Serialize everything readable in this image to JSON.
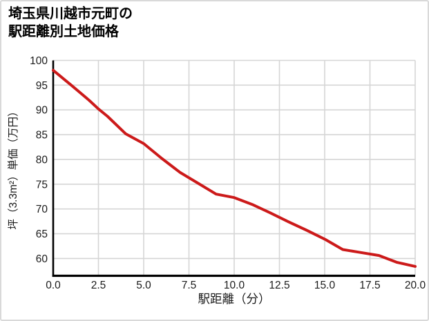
{
  "header": {
    "title_line1": "埼玉県川越市元町の",
    "title_line2": "駅距離別土地価格"
  },
  "chart_data": {
    "type": "line",
    "title": "埼玉県川越市元町の駅距離別土地価格",
    "xlabel": "駅距離（分）",
    "ylabel": "坪（3.3m²）単価（万円）",
    "xlim": [
      0,
      20
    ],
    "ylim": [
      56.5,
      100
    ],
    "x_ticks": [
      0,
      2.5,
      5,
      7.5,
      10,
      12.5,
      15,
      17.5,
      20
    ],
    "x_tick_labels": [
      "0.0",
      "2.5",
      "5.0",
      "7.5",
      "10.0",
      "12.5",
      "15.0",
      "17.5",
      "20.0"
    ],
    "y_ticks": [
      60,
      65,
      70,
      75,
      80,
      85,
      90,
      95,
      100
    ],
    "grid": true,
    "legend": "none",
    "line_color": "#cc1a1a",
    "grid_color": "#d5d5d5",
    "axis_color": "#000000",
    "tick_label_color": "#1a1a1a",
    "series": [
      {
        "points": [
          [
            0,
            98.0
          ],
          [
            1,
            95.0
          ],
          [
            2,
            91.9
          ],
          [
            2.5,
            90.2
          ],
          [
            3,
            88.7
          ],
          [
            4,
            85.2
          ],
          [
            5,
            83.2
          ],
          [
            6,
            80.2
          ],
          [
            7,
            77.4
          ],
          [
            8,
            75.2
          ],
          [
            9,
            73.0
          ],
          [
            10,
            72.3
          ],
          [
            11,
            70.9
          ],
          [
            12,
            69.2
          ],
          [
            13,
            67.4
          ],
          [
            14,
            65.7
          ],
          [
            15,
            63.9
          ],
          [
            16,
            61.8
          ],
          [
            17,
            61.2
          ],
          [
            18,
            60.6
          ],
          [
            19,
            59.2
          ],
          [
            20,
            58.4
          ]
        ]
      }
    ]
  }
}
